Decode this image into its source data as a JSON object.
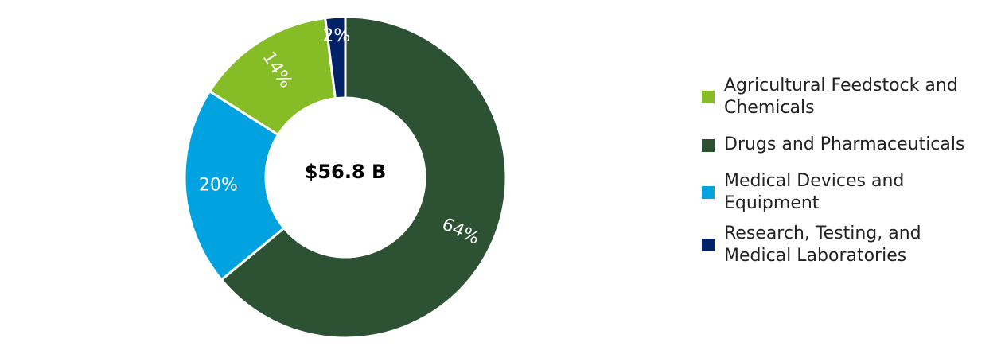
{
  "chart_data": {
    "type": "pie",
    "style": "donut",
    "center_label": "$56.8 B",
    "slices": [
      {
        "label": "Drugs and Pharmaceuticals",
        "value": 64,
        "display": "64%",
        "color": "#2d5233"
      },
      {
        "label": "Medical Devices and\nEquipment",
        "value": 20,
        "display": "20%",
        "color": "#00a3e0"
      },
      {
        "label": "Agricultural Feedstock and\nChemicals",
        "value": 14,
        "display": "14%",
        "color": "#86bc25"
      },
      {
        "label": "Research, Testing, and\nMedical Laboratories",
        "value": 2,
        "display": "2%",
        "color": "#012169"
      }
    ],
    "legend_order": [
      2,
      0,
      1,
      3
    ],
    "legend_position": "right"
  }
}
